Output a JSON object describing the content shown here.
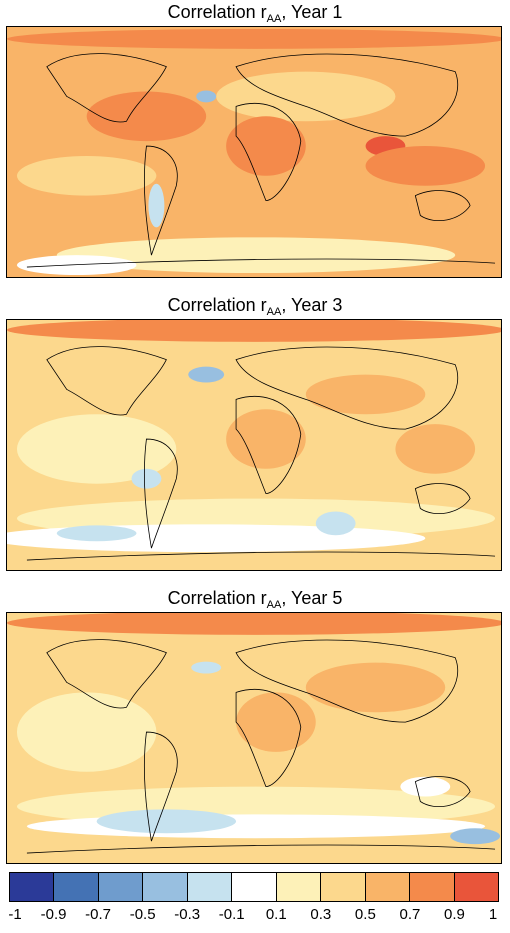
{
  "panels": [
    {
      "title_main": "Correlation r",
      "title_sub": "AA",
      "title_tail": ", Year 1",
      "tone": "warm"
    },
    {
      "title_main": "Correlation r",
      "title_sub": "AA",
      "title_tail": ", Year 3",
      "tone": "mixed"
    },
    {
      "title_main": "Correlation r",
      "title_sub": "AA",
      "title_tail": ", Year 5",
      "tone": "mixed"
    }
  ],
  "colorbar": {
    "tick_labels": [
      "-1",
      "-0.9",
      "-0.7",
      "-0.5",
      "-0.3",
      "-0.1",
      "0.1",
      "0.3",
      "0.5",
      "0.7",
      "0.9",
      "1"
    ],
    "colors": [
      "#2b3a98",
      "#4472b4",
      "#6f9ccd",
      "#98bfe0",
      "#c6e2ef",
      "#ffffff",
      "#fdf1b8",
      "#fcd88d",
      "#f9b468",
      "#f48a4b",
      "#e9553a"
    ]
  },
  "palette": {
    "land_outline": "#000000",
    "deep_orange": "#f48a4b",
    "mid_orange": "#f9b468",
    "light_orange": "#fcd88d",
    "cream": "#fdf1b8",
    "white": "#ffffff",
    "light_blue": "#c6e2ef",
    "mid_blue": "#98bfe0",
    "red": "#e9553a"
  }
}
